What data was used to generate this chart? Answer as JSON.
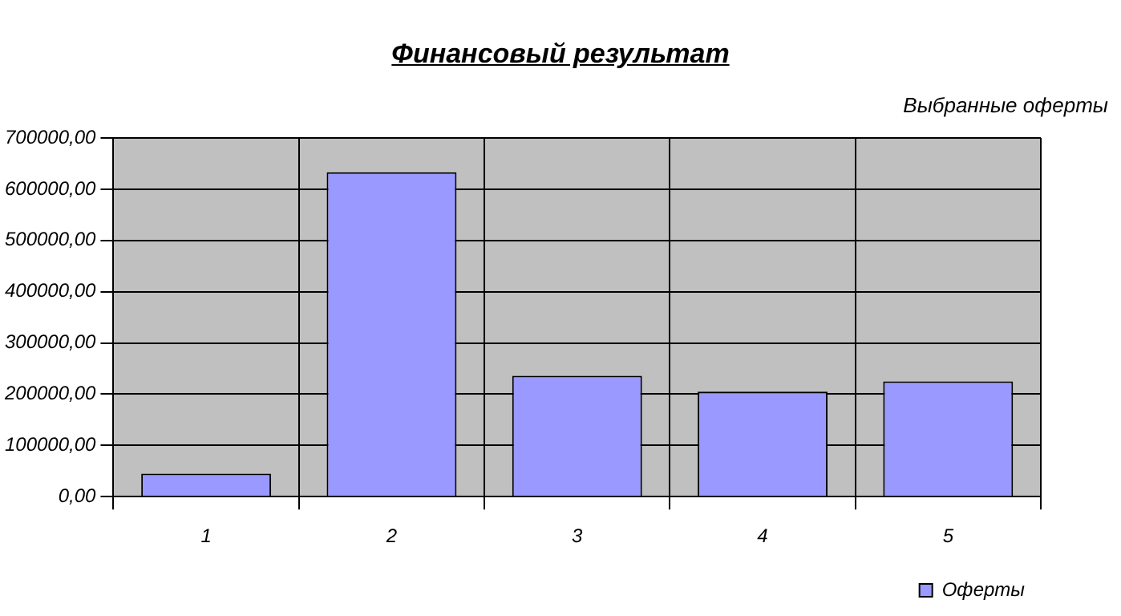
{
  "chart_data": {
    "type": "bar",
    "title": "Финансовый результат",
    "annotations": [
      "Выбранные оферты"
    ],
    "categories": [
      "1",
      "2",
      "3",
      "4",
      "5"
    ],
    "series": [
      {
        "name": "Оферты",
        "color": "#9999ff",
        "values": [
          45000,
          633000,
          236000,
          205000,
          225000
        ]
      }
    ],
    "ylim": [
      0,
      700000
    ],
    "yticks": [
      {
        "value": 0,
        "label": "0,00"
      },
      {
        "value": 100000,
        "label": "100000,00"
      },
      {
        "value": 200000,
        "label": "200000,00"
      },
      {
        "value": 300000,
        "label": "300000,00"
      },
      {
        "value": 400000,
        "label": "400000,00"
      },
      {
        "value": 500000,
        "label": "500000,00"
      },
      {
        "value": 600000,
        "label": "600000,00"
      },
      {
        "value": 700000,
        "label": "700000,00"
      }
    ],
    "grid": true,
    "legend": "bottom right"
  }
}
